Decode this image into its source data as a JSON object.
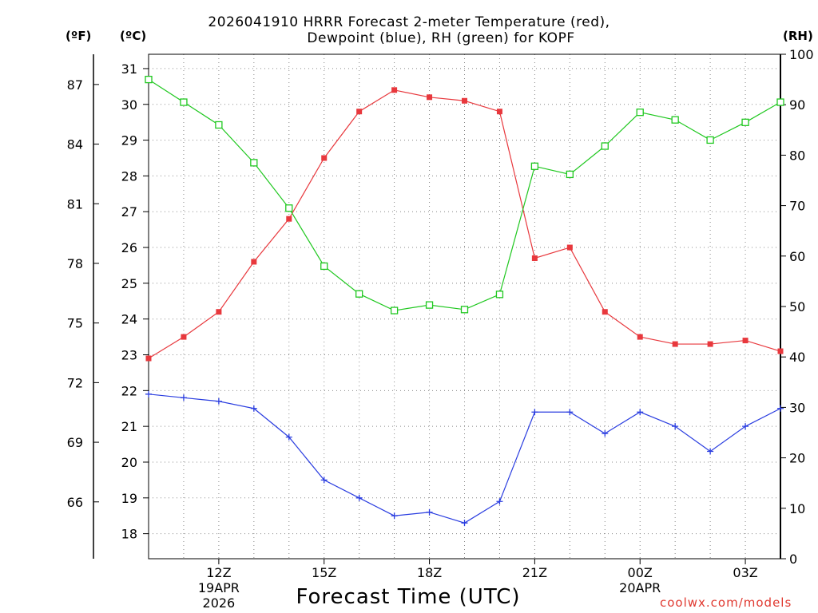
{
  "title": {
    "line1": "2026041910 HRRR Forecast 2-meter Temperature (red),",
    "line2": "Dewpoint (blue), RH (green) for KOPF"
  },
  "units": {
    "fahrenheit": "(ºF)",
    "celsius": "(ºC)",
    "rh": "(RH)"
  },
  "credit": "coolwx.com/models",
  "colors": {
    "temperature": "#e8383d",
    "dewpoint": "#2a3de0",
    "rh": "#20c820",
    "grid": "#888888"
  },
  "chart_data": {
    "type": "line",
    "title": "2026041910 HRRR Forecast 2-meter Temperature (red), Dewpoint (blue), RH (green) for KOPF",
    "xlabel": "Forecast Time (UTC)",
    "x_hours": [
      10,
      11,
      12,
      13,
      14,
      15,
      16,
      17,
      18,
      19,
      20,
      21,
      22,
      23,
      24,
      25,
      26,
      27,
      28
    ],
    "xlim": [
      10,
      28
    ],
    "x_ticks": [
      {
        "hour": 12,
        "label": "12Z",
        "sub1": "19APR",
        "sub2": "2026"
      },
      {
        "hour": 15,
        "label": "15Z",
        "sub1": "",
        "sub2": ""
      },
      {
        "hour": 18,
        "label": "18Z",
        "sub1": "",
        "sub2": ""
      },
      {
        "hour": 21,
        "label": "21Z",
        "sub1": "",
        "sub2": ""
      },
      {
        "hour": 24,
        "label": "00Z",
        "sub1": "20APR",
        "sub2": ""
      },
      {
        "hour": 27,
        "label": "03Z",
        "sub1": "",
        "sub2": ""
      }
    ],
    "y_celsius": {
      "lim": [
        17.3,
        31.4
      ],
      "ticks": [
        18,
        19,
        20,
        21,
        22,
        23,
        24,
        25,
        26,
        27,
        28,
        29,
        30,
        31
      ]
    },
    "y_fahrenheit": {
      "ticks": [
        66,
        69,
        72,
        75,
        78,
        81,
        84,
        87
      ]
    },
    "y_rh": {
      "lim": [
        0,
        100
      ],
      "ticks": [
        0,
        10,
        20,
        30,
        40,
        50,
        60,
        70,
        80,
        90,
        100
      ]
    },
    "series": [
      {
        "name": "Temperature",
        "units": "C",
        "color": "red",
        "marker": "filled-square",
        "values": [
          22.9,
          23.5,
          24.2,
          25.6,
          26.8,
          28.5,
          29.8,
          30.4,
          30.2,
          30.1,
          29.8,
          25.7,
          26.0,
          24.2,
          23.5,
          23.3,
          23.3,
          23.4,
          23.1
        ]
      },
      {
        "name": "Dewpoint",
        "units": "C",
        "color": "blue",
        "marker": "plus",
        "values": [
          21.9,
          21.8,
          21.7,
          21.5,
          20.7,
          19.5,
          19.0,
          18.5,
          18.6,
          18.3,
          18.9,
          21.4,
          21.4,
          20.8,
          21.4,
          21.0,
          20.3,
          21.0,
          21.5
        ]
      },
      {
        "name": "RH",
        "units": "%",
        "color": "green",
        "marker": "open-square",
        "values": [
          95,
          90.5,
          86,
          78.5,
          69.5,
          58,
          52.5,
          49.2,
          50.3,
          49.4,
          52.4,
          77.8,
          76.2,
          81.8,
          88.5,
          87,
          83,
          86.5,
          90.5
        ]
      }
    ]
  }
}
